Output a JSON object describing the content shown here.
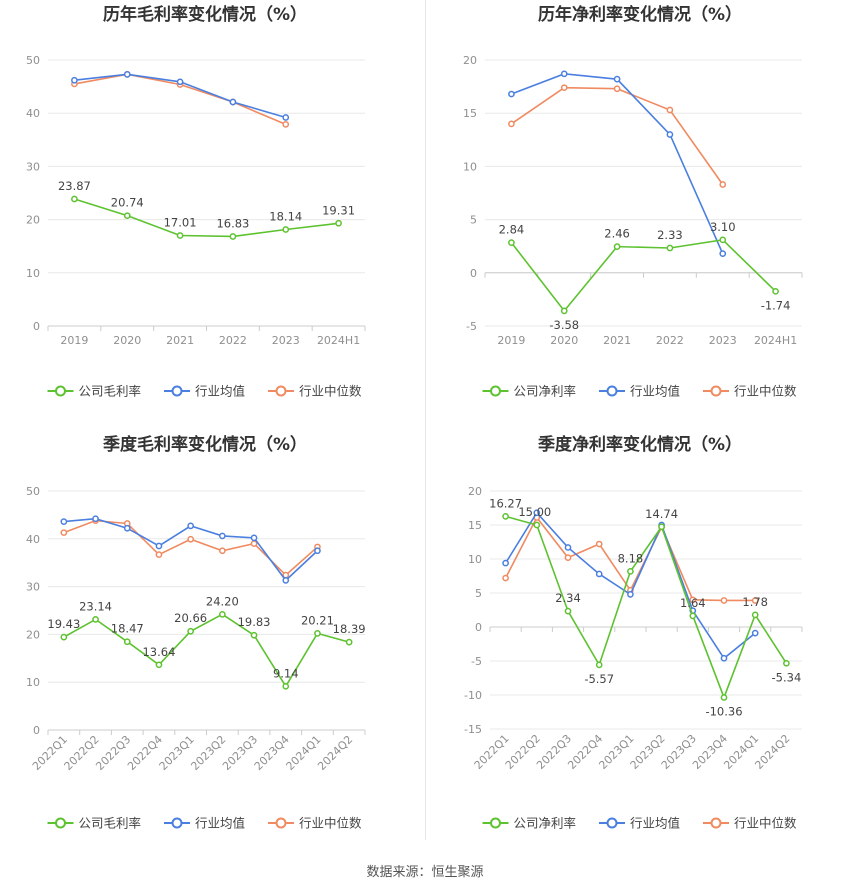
{
  "source_label": "数据来源：恒生聚源",
  "colors": {
    "company": "#5dc22f",
    "avg": "#4a7fe0",
    "median": "#f08a60",
    "grid": "#e8e8e8",
    "axis": "#cccccc",
    "tick": "#8f8f8f",
    "title": "#333333"
  },
  "chart_data": [
    {
      "type": "line",
      "title": "历年毛利率变化情况（%）",
      "categories": [
        "2019",
        "2020",
        "2021",
        "2022",
        "2023",
        "2024H1"
      ],
      "ylim": [
        0,
        50
      ],
      "yticks": [
        0,
        10,
        20,
        30,
        40,
        50
      ],
      "rotate_x": false,
      "series": [
        {
          "name": "公司毛利率",
          "color_key": "company",
          "values": [
            23.87,
            20.74,
            17.01,
            16.83,
            18.14,
            19.31
          ],
          "labels": [
            "23.87",
            "20.74",
            "17.01",
            "16.83",
            "18.14",
            "19.31"
          ]
        },
        {
          "name": "行业均值",
          "color_key": "avg",
          "values": [
            46.2,
            47.3,
            45.9,
            42.1,
            39.2,
            null
          ]
        },
        {
          "name": "行业中位数",
          "color_key": "median",
          "values": [
            45.5,
            47.3,
            45.4,
            42.1,
            37.9,
            null
          ]
        }
      ]
    },
    {
      "type": "line",
      "title": "历年净利率变化情况（%）",
      "categories": [
        "2019",
        "2020",
        "2021",
        "2022",
        "2023",
        "2024H1"
      ],
      "ylim": [
        -5,
        20
      ],
      "yticks": [
        -5,
        0,
        5,
        10,
        15,
        20
      ],
      "rotate_x": false,
      "series": [
        {
          "name": "公司净利率",
          "color_key": "company",
          "values": [
            2.84,
            -3.58,
            2.46,
            2.33,
            3.1,
            -1.74
          ],
          "labels": [
            "2.84",
            "-3.58",
            "2.46",
            "2.33",
            "3.10",
            "-1.74"
          ]
        },
        {
          "name": "行业均值",
          "color_key": "avg",
          "values": [
            16.8,
            18.7,
            18.2,
            13.0,
            1.8,
            null
          ]
        },
        {
          "name": "行业中位数",
          "color_key": "median",
          "values": [
            14.0,
            17.4,
            17.3,
            15.3,
            8.3,
            null
          ]
        }
      ]
    },
    {
      "type": "line",
      "title": "季度毛利率变化情况（%）",
      "categories": [
        "2022Q1",
        "2022Q2",
        "2022Q3",
        "2022Q4",
        "2023Q1",
        "2023Q2",
        "2023Q3",
        "2023Q4",
        "2024Q1",
        "2024Q2"
      ],
      "ylim": [
        0,
        50
      ],
      "yticks": [
        0,
        10,
        20,
        30,
        40,
        50
      ],
      "rotate_x": true,
      "series": [
        {
          "name": "公司毛利率",
          "color_key": "company",
          "values": [
            19.43,
            23.14,
            18.47,
            13.64,
            20.66,
            24.2,
            19.83,
            9.14,
            20.21,
            18.39
          ],
          "labels": [
            "19.43",
            "23.14",
            "18.47",
            "13.64",
            "20.66",
            "24.20",
            "19.83",
            "9.14",
            "20.21",
            "18.39"
          ]
        },
        {
          "name": "行业均值",
          "color_key": "avg",
          "values": [
            43.6,
            44.2,
            42.2,
            38.5,
            42.7,
            40.6,
            40.2,
            31.3,
            37.5,
            null
          ]
        },
        {
          "name": "行业中位数",
          "color_key": "median",
          "values": [
            41.3,
            43.8,
            43.2,
            36.7,
            39.9,
            37.5,
            39.0,
            32.4,
            38.3,
            null
          ]
        }
      ]
    },
    {
      "type": "line",
      "title": "季度净利率变化情况（%）",
      "categories": [
        "2022Q1",
        "2022Q2",
        "2022Q3",
        "2022Q4",
        "2023Q1",
        "2023Q2",
        "2023Q3",
        "2023Q4",
        "2024Q1",
        "2024Q2"
      ],
      "ylim": [
        -15,
        20
      ],
      "yticks": [
        -15,
        -10,
        -5,
        0,
        5,
        10,
        15,
        20
      ],
      "rotate_x": true,
      "series": [
        {
          "name": "公司净利率",
          "color_key": "company",
          "values": [
            16.27,
            15.0,
            2.34,
            -5.57,
            8.18,
            14.74,
            1.64,
            -10.36,
            1.78,
            -5.34
          ],
          "labels": [
            "16.27",
            "15.00",
            "2.34",
            "-5.57",
            "8.18",
            "14.74",
            "1.64",
            "-10.36",
            "1.78",
            "-5.34"
          ]
        },
        {
          "name": "行业均值",
          "color_key": "avg",
          "values": [
            9.4,
            16.8,
            11.7,
            7.8,
            4.8,
            15.0,
            2.4,
            -4.6,
            -0.9,
            null
          ]
        },
        {
          "name": "行业中位数",
          "color_key": "median",
          "values": [
            7.2,
            16.1,
            10.2,
            12.2,
            5.4,
            14.7,
            4.0,
            3.9,
            3.9,
            null
          ]
        }
      ]
    }
  ]
}
